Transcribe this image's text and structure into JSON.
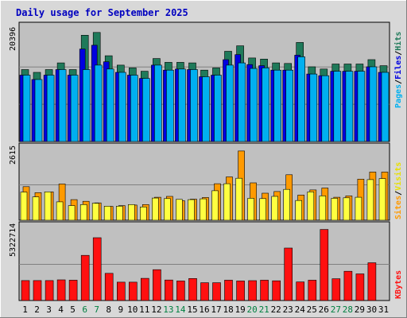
{
  "title": "Daily usage for September 2025",
  "colors": {
    "title": "#0000c0",
    "hits": "#1f7a5a",
    "files": "#0000e0",
    "pages": "#00b0f0",
    "visits": "#ffff40",
    "sites": "#ff9a00",
    "kbytes": "#ff1010",
    "panel_bg": "#c0c0c0",
    "frame_bg": "#d8d8d8",
    "weekend_label": "#008040",
    "weekday_label": "#000000"
  },
  "axis_labels": {
    "top_max": "20396",
    "mid_max": "2615",
    "bottom_max": "5322714"
  },
  "right_labels": {
    "top": [
      {
        "text": "Pages",
        "color": "#00b0f0"
      },
      {
        "text": "/",
        "color": "#000000"
      },
      {
        "text": "Files",
        "color": "#0000e0"
      },
      {
        "text": "/",
        "color": "#000000"
      },
      {
        "text": "Hits",
        "color": "#1f7a5a"
      }
    ],
    "mid": [
      {
        "text": "Sites",
        "color": "#ff9a00"
      },
      {
        "text": "/",
        "color": "#000000"
      },
      {
        "text": "Visits",
        "color": "#e8e000"
      }
    ],
    "bottom": [
      {
        "text": "KBytes",
        "color": "#ff1010"
      }
    ]
  },
  "chart_data": {
    "type": "bar",
    "title": "Daily usage for September 2025",
    "categories": [
      "1",
      "2",
      "3",
      "4",
      "5",
      "6",
      "7",
      "8",
      "9",
      "10",
      "11",
      "12",
      "13",
      "14",
      "15",
      "16",
      "17",
      "18",
      "19",
      "20",
      "21",
      "22",
      "23",
      "24",
      "25",
      "26",
      "27",
      "28",
      "29",
      "30",
      "31"
    ],
    "weekend_days": [
      "6",
      "7",
      "13",
      "14",
      "20",
      "21",
      "27",
      "28"
    ],
    "panels": [
      {
        "name": "pages-files-hits",
        "ymax": 20396,
        "series": [
          {
            "name": "Hits",
            "values": [
              13000,
              12500,
              13000,
              14200,
              13000,
              19200,
              19700,
              15500,
              13800,
              13300,
              12700,
              15000,
              14300,
              14300,
              14200,
              12900,
              13300,
              16300,
              17300,
              15100,
              14900,
              14200,
              14100,
              17900,
              13500,
              13100,
              14000,
              14000,
              14000,
              14800,
              13700
            ]
          },
          {
            "name": "Files",
            "values": [
              12000,
              11200,
              12000,
              13000,
              12000,
              16700,
              17400,
              14400,
              12500,
              12000,
              11400,
              13800,
              12900,
              13100,
              13000,
              11700,
              12000,
              14800,
              15700,
              13900,
              13700,
              12900,
              12900,
              15600,
              12200,
              11900,
              12700,
              12700,
              12700,
              13500,
              12500
            ]
          },
          {
            "name": "Pages",
            "values": [
              12000,
              11200,
              12000,
              13000,
              12000,
              13000,
              13800,
              13100,
              12500,
              12000,
              11400,
              13800,
              12900,
              13100,
              13000,
              11700,
              12000,
              13800,
              14200,
              13200,
              13300,
              12900,
              12900,
              15300,
              12200,
              11900,
              12700,
              12700,
              12700,
              13500,
              12500
            ]
          }
        ]
      },
      {
        "name": "sites-visits",
        "ymax": 2615,
        "series": [
          {
            "name": "Visits",
            "values": [
              1040,
              860,
              1050,
              680,
              540,
              580,
              630,
              520,
              520,
              580,
              490,
              820,
              800,
              770,
              760,
              790,
              1090,
              1350,
              1550,
              810,
              800,
              880,
              1140,
              730,
              1050,
              900,
              810,
              830,
              850,
              1500,
              1540
            ]
          },
          {
            "name": "Sites",
            "values": [
              1240,
              1020,
              1050,
              1340,
              760,
              700,
              640,
              510,
              540,
              560,
              580,
              850,
              880,
              720,
              780,
              840,
              1350,
              1600,
              2560,
              1380,
              1000,
              1060,
              1680,
              930,
              1120,
              1190,
              850,
              900,
              1520,
              1780,
              1780
            ]
          }
        ]
      },
      {
        "name": "kbytes",
        "ymax": 5322714,
        "series": [
          {
            "name": "KBytes",
            "values": [
              1470000,
              1470000,
              1470000,
              1520000,
              1500000,
              3320000,
              4620000,
              2000000,
              1350000,
              1350000,
              1630000,
              2270000,
              1510000,
              1440000,
              1620000,
              1310000,
              1310000,
              1500000,
              1440000,
              1460000,
              1500000,
              1450000,
              3860000,
              1370000,
              1500000,
              5230000,
              1600000,
              2150000,
              1960000,
              2780000,
              0
            ]
          }
        ]
      }
    ]
  }
}
